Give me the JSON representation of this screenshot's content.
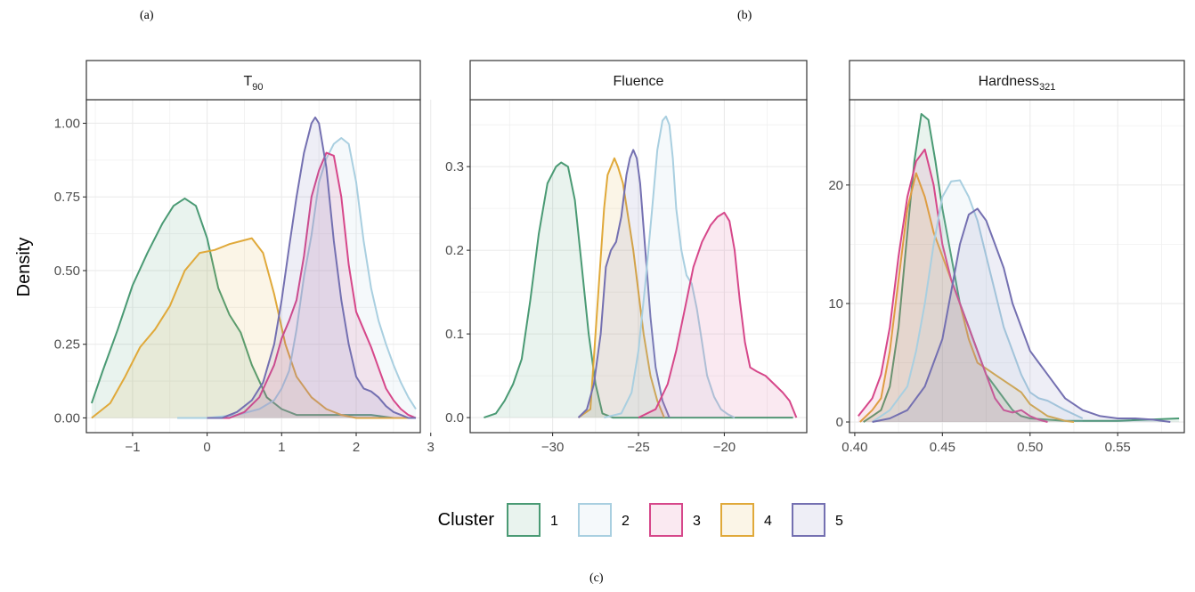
{
  "captions": {
    "a": "(a)",
    "b": "(b)",
    "c": "(c)"
  },
  "palette": {
    "1": "#4a9a74",
    "2": "#a9cfe0",
    "3": "#d6478a",
    "4": "#e0a93a",
    "5": "#7470b1"
  },
  "chart_data": {
    "type": "area",
    "ylabel": "Density",
    "legend": {
      "title": "Cluster",
      "entries": [
        "1",
        "2",
        "3",
        "4",
        "5"
      ],
      "placement": "bottom"
    },
    "grid": true,
    "panels": [
      {
        "title": "T",
        "title_sub": "90",
        "xlim": [
          -1.62,
          2.86
        ],
        "ylim": [
          -0.05,
          1.08
        ],
        "xticks": [
          -1,
          0,
          1,
          2,
          3
        ],
        "xtick_labels": [
          "−1",
          "0",
          "1",
          "2",
          "3"
        ],
        "yticks": [
          0,
          0.25,
          0.5,
          0.75,
          1.0
        ],
        "ytick_labels": [
          "0.00",
          "0.25",
          "0.50",
          "0.75",
          "1.00"
        ],
        "series": [
          {
            "name": "1",
            "x": [
              -1.55,
              -1.4,
              -1.2,
              -1.0,
              -0.8,
              -0.6,
              -0.45,
              -0.3,
              -0.15,
              0.0,
              0.15,
              0.3,
              0.45,
              0.6,
              0.8,
              1.0,
              1.2,
              1.4,
              1.6,
              1.8,
              2.0,
              2.2,
              2.5,
              2.8
            ],
            "y": [
              0.05,
              0.16,
              0.3,
              0.45,
              0.56,
              0.66,
              0.72,
              0.745,
              0.72,
              0.61,
              0.44,
              0.35,
              0.29,
              0.18,
              0.07,
              0.03,
              0.01,
              0.01,
              0.01,
              0.01,
              0.01,
              0.01,
              0.0,
              0.0
            ]
          },
          {
            "name": "4",
            "x": [
              -1.55,
              -1.3,
              -1.1,
              -0.9,
              -0.7,
              -0.5,
              -0.3,
              -0.1,
              0.1,
              0.3,
              0.45,
              0.6,
              0.75,
              0.9,
              1.05,
              1.2,
              1.4,
              1.6,
              1.8,
              2.0,
              2.2,
              2.5,
              2.8
            ],
            "y": [
              0.0,
              0.05,
              0.14,
              0.24,
              0.3,
              0.38,
              0.5,
              0.56,
              0.57,
              0.59,
              0.6,
              0.61,
              0.56,
              0.42,
              0.25,
              0.14,
              0.07,
              0.03,
              0.01,
              0.0,
              0.0,
              0.0,
              0.0
            ]
          },
          {
            "name": "2",
            "x": [
              -0.4,
              0.0,
              0.4,
              0.7,
              0.9,
              1.0,
              1.1,
              1.2,
              1.3,
              1.4,
              1.5,
              1.6,
              1.7,
              1.8,
              1.9,
              2.0,
              2.1,
              2.2,
              2.3,
              2.4,
              2.5,
              2.6,
              2.7,
              2.8
            ],
            "y": [
              0.0,
              0.0,
              0.01,
              0.03,
              0.06,
              0.1,
              0.16,
              0.3,
              0.48,
              0.62,
              0.8,
              0.88,
              0.93,
              0.95,
              0.93,
              0.8,
              0.6,
              0.44,
              0.33,
              0.25,
              0.18,
              0.12,
              0.07,
              0.03
            ]
          },
          {
            "name": "3",
            "x": [
              0.0,
              0.3,
              0.5,
              0.7,
              0.9,
              1.0,
              1.1,
              1.2,
              1.3,
              1.4,
              1.5,
              1.6,
              1.7,
              1.8,
              1.9,
              2.0,
              2.1,
              2.2,
              2.3,
              2.4,
              2.5,
              2.6,
              2.7,
              2.8
            ],
            "y": [
              0.0,
              0.0,
              0.02,
              0.07,
              0.18,
              0.27,
              0.33,
              0.4,
              0.55,
              0.75,
              0.84,
              0.9,
              0.89,
              0.75,
              0.52,
              0.36,
              0.3,
              0.24,
              0.17,
              0.1,
              0.06,
              0.03,
              0.01,
              0.0
            ]
          },
          {
            "name": "5",
            "x": [
              0.0,
              0.2,
              0.4,
              0.6,
              0.75,
              0.9,
              1.0,
              1.1,
              1.2,
              1.3,
              1.4,
              1.45,
              1.5,
              1.6,
              1.7,
              1.8,
              1.9,
              2.0,
              2.1,
              2.2,
              2.3,
              2.4,
              2.5,
              2.6,
              2.7,
              2.8
            ],
            "y": [
              0.0,
              0.0,
              0.02,
              0.06,
              0.12,
              0.25,
              0.4,
              0.58,
              0.75,
              0.9,
              1.0,
              1.02,
              1.0,
              0.85,
              0.6,
              0.4,
              0.25,
              0.14,
              0.1,
              0.09,
              0.07,
              0.04,
              0.02,
              0.01,
              0.0,
              0.0
            ]
          }
        ]
      },
      {
        "title": "Fluence",
        "xlim": [
          -34.8,
          -15.2
        ],
        "ylim": [
          -0.018,
          0.38
        ],
        "xticks": [
          -30,
          -25,
          -20
        ],
        "xtick_labels": [
          "−30",
          "−25",
          "−20"
        ],
        "yticks": [
          0,
          0.1,
          0.2,
          0.3
        ],
        "ytick_labels": [
          "0.0",
          "0.1",
          "0.2",
          "0.3"
        ],
        "series": [
          {
            "name": "1",
            "x": [
              -34.0,
              -33.3,
              -32.8,
              -32.3,
              -31.8,
              -31.3,
              -30.8,
              -30.3,
              -29.8,
              -29.5,
              -29.1,
              -28.7,
              -28.3,
              -27.9,
              -27.5,
              -27.1,
              -26.5,
              -25.5,
              -24,
              -22,
              -20,
              -18,
              -16
            ],
            "y": [
              0.0,
              0.005,
              0.02,
              0.04,
              0.07,
              0.14,
              0.22,
              0.28,
              0.3,
              0.305,
              0.3,
              0.26,
              0.18,
              0.1,
              0.04,
              0.005,
              0.0,
              0.0,
              0.0,
              0.0,
              0.0,
              0.0,
              0.0
            ]
          },
          {
            "name": "4",
            "x": [
              -28.5,
              -27.8,
              -27.3,
              -27.0,
              -26.8,
              -26.6,
              -26.4,
              -26.2,
              -25.9,
              -25.6,
              -25.3,
              -25.0,
              -24.7,
              -24.3,
              -23.9,
              -23.5
            ],
            "y": [
              0.0,
              0.01,
              0.16,
              0.25,
              0.29,
              0.3,
              0.31,
              0.3,
              0.28,
              0.24,
              0.2,
              0.15,
              0.1,
              0.05,
              0.02,
              0.0
            ]
          },
          {
            "name": "5",
            "x": [
              -28.5,
              -28.0,
              -27.6,
              -27.2,
              -26.9,
              -26.6,
              -26.3,
              -26.0,
              -25.7,
              -25.5,
              -25.3,
              -25.1,
              -24.9,
              -24.6,
              -24.3,
              -24.0,
              -23.6,
              -23.2
            ],
            "y": [
              0.0,
              0.01,
              0.04,
              0.1,
              0.18,
              0.2,
              0.21,
              0.24,
              0.29,
              0.31,
              0.32,
              0.31,
              0.28,
              0.2,
              0.12,
              0.06,
              0.02,
              0.0
            ]
          },
          {
            "name": "2",
            "x": [
              -27.0,
              -26.0,
              -25.4,
              -25.0,
              -24.6,
              -24.2,
              -23.9,
              -23.6,
              -23.4,
              -23.2,
              -23.0,
              -22.8,
              -22.5,
              -22.2,
              -21.9,
              -21.6,
              -21.3,
              -21.0,
              -20.6,
              -20.2,
              -19.8,
              -19.4
            ],
            "y": [
              0.0,
              0.005,
              0.03,
              0.08,
              0.16,
              0.25,
              0.32,
              0.355,
              0.36,
              0.35,
              0.31,
              0.25,
              0.2,
              0.17,
              0.16,
              0.13,
              0.09,
              0.05,
              0.025,
              0.01,
              0.004,
              0.0
            ]
          },
          {
            "name": "3",
            "x": [
              -25.0,
              -24.0,
              -23.3,
              -22.8,
              -22.3,
              -21.8,
              -21.3,
              -20.8,
              -20.4,
              -20.0,
              -19.7,
              -19.4,
              -19.1,
              -18.8,
              -18.5,
              -18.1,
              -17.6,
              -17.1,
              -16.6,
              -16.2,
              -15.8
            ],
            "y": [
              0.0,
              0.01,
              0.04,
              0.08,
              0.13,
              0.18,
              0.21,
              0.23,
              0.24,
              0.245,
              0.235,
              0.2,
              0.14,
              0.09,
              0.06,
              0.055,
              0.05,
              0.04,
              0.03,
              0.02,
              0.0
            ]
          }
        ]
      },
      {
        "title": "Hardness",
        "title_sub": "321",
        "xlim": [
          0.397,
          0.588
        ],
        "ylim": [
          -0.9,
          27.2
        ],
        "xticks": [
          0.4,
          0.45,
          0.5,
          0.55
        ],
        "xtick_labels": [
          "0.40",
          "0.45",
          "0.50",
          "0.55"
        ],
        "yticks": [
          0,
          10,
          20
        ],
        "ytick_labels": [
          "0",
          "10",
          "20"
        ],
        "series": [
          {
            "name": "1",
            "x": [
              0.405,
              0.41,
              0.415,
              0.42,
              0.425,
              0.43,
              0.434,
              0.438,
              0.442,
              0.446,
              0.45,
              0.455,
              0.46,
              0.465,
              0.47,
              0.475,
              0.48,
              0.485,
              0.49,
              0.495,
              0.5,
              0.51,
              0.52,
              0.55,
              0.585
            ],
            "y": [
              0.0,
              0.5,
              1.0,
              3.0,
              8.0,
              16.0,
              22.0,
              26.0,
              25.5,
              22.0,
              18.0,
              14.0,
              10.0,
              8.0,
              6.0,
              4.0,
              3.0,
              2.0,
              1.0,
              0.5,
              0.3,
              0.2,
              0.1,
              0.1,
              0.3
            ]
          },
          {
            "name": "4",
            "x": [
              0.403,
              0.41,
              0.415,
              0.42,
              0.425,
              0.43,
              0.435,
              0.44,
              0.445,
              0.45,
              0.455,
              0.46,
              0.465,
              0.47,
              0.475,
              0.48,
              0.485,
              0.49,
              0.495,
              0.5,
              0.505,
              0.51,
              0.515,
              0.52,
              0.525
            ],
            "y": [
              0.0,
              1.0,
              2.0,
              6.0,
              12.0,
              18.0,
              21.0,
              19.0,
              16.0,
              14.0,
              12.0,
              10.0,
              7.0,
              5.0,
              4.5,
              4.0,
              3.5,
              3.0,
              2.5,
              1.5,
              1.0,
              0.5,
              0.3,
              0.1,
              0.0
            ]
          },
          {
            "name": "3",
            "x": [
              0.402,
              0.41,
              0.415,
              0.42,
              0.425,
              0.43,
              0.435,
              0.44,
              0.445,
              0.45,
              0.455,
              0.46,
              0.465,
              0.47,
              0.475,
              0.48,
              0.485,
              0.49,
              0.495,
              0.5,
              0.505,
              0.51
            ],
            "y": [
              0.5,
              2.0,
              4.0,
              8.0,
              14.0,
              19.0,
              22.0,
              23.0,
              20.0,
              15.0,
              12.0,
              10.0,
              8.0,
              6.0,
              4.0,
              2.0,
              1.0,
              0.8,
              1.0,
              0.5,
              0.2,
              0.0
            ]
          },
          {
            "name": "2",
            "x": [
              0.41,
              0.42,
              0.43,
              0.435,
              0.44,
              0.445,
              0.45,
              0.455,
              0.46,
              0.465,
              0.47,
              0.475,
              0.48,
              0.485,
              0.49,
              0.495,
              0.5,
              0.505,
              0.51,
              0.52,
              0.53
            ],
            "y": [
              0.0,
              1.0,
              3.0,
              6.0,
              10.0,
              15.0,
              19.0,
              20.3,
              20.4,
              19.0,
              17.0,
              14.0,
              11.0,
              8.0,
              6.0,
              4.0,
              2.5,
              2.0,
              1.8,
              1.0,
              0.3
            ]
          },
          {
            "name": "5",
            "x": [
              0.41,
              0.42,
              0.43,
              0.44,
              0.45,
              0.455,
              0.46,
              0.465,
              0.47,
              0.475,
              0.48,
              0.485,
              0.49,
              0.495,
              0.5,
              0.505,
              0.51,
              0.52,
              0.53,
              0.54,
              0.55,
              0.56,
              0.57,
              0.58
            ],
            "y": [
              0.0,
              0.3,
              1.0,
              3.0,
              7.0,
              11.0,
              15.0,
              17.5,
              18.0,
              17.0,
              15.0,
              13.0,
              10.0,
              8.0,
              6.0,
              5.0,
              4.0,
              2.0,
              1.0,
              0.5,
              0.3,
              0.3,
              0.2,
              0.0
            ]
          }
        ]
      }
    ]
  }
}
